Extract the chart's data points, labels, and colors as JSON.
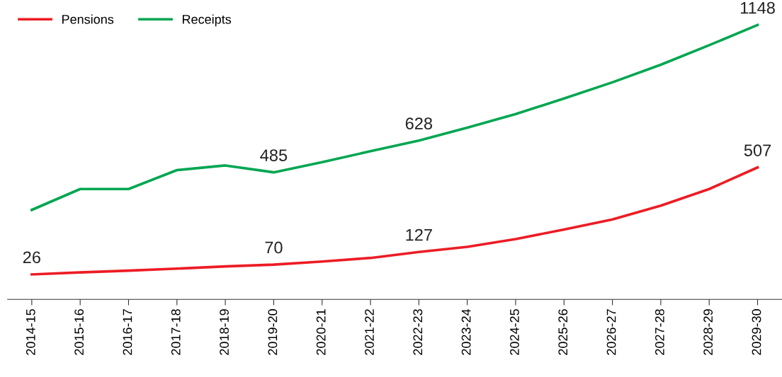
{
  "chart_data": {
    "type": "line",
    "categories": [
      "2014-15",
      "2015-16",
      "2016-17",
      "2017-18",
      "2018-19",
      "2019-20",
      "2020-21",
      "2021-22",
      "2022-23",
      "2023-24",
      "2024-25",
      "2025-26",
      "2026-27",
      "2027-28",
      "2028-29",
      "2029-30"
    ],
    "series": [
      {
        "name": "Pensions",
        "color": "#ed1c24",
        "values": [
          26,
          35,
          43,
          52,
          62,
          70,
          84,
          100,
          127,
          150,
          185,
          228,
          273,
          335,
          410,
          507
        ],
        "value_labels": [
          "26",
          null,
          null,
          null,
          null,
          "70",
          null,
          null,
          "127",
          null,
          null,
          null,
          null,
          null,
          null,
          "507"
        ]
      },
      {
        "name": "Receipts",
        "color": "#00a651",
        "values": [
          316,
          410,
          410,
          495,
          516,
          485,
          531,
          580,
          628,
          686,
          747,
          817,
          890,
          969,
          1057,
          1148
        ],
        "value_labels": [
          null,
          null,
          null,
          null,
          null,
          "485",
          null,
          null,
          "628",
          null,
          null,
          null,
          null,
          null,
          null,
          "1148"
        ]
      }
    ],
    "tick_labels": "x",
    "legend": "top left",
    "grid": false,
    "marker": "none",
    "line_style": "solid"
  }
}
